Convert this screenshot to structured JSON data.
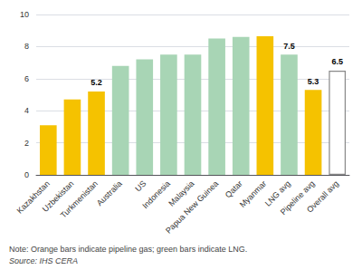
{
  "chart_data": {
    "type": "bar",
    "categories": [
      "Kazakhstan",
      "Uzbekistan",
      "Turkmenistan",
      "Australia",
      "US",
      "Indonesia",
      "Malaysia",
      "Papua New Guinea",
      "Qatar",
      "Myanmar",
      "LNG avg",
      "Pipeline avg",
      "Overall avg"
    ],
    "values": [
      3.1,
      4.7,
      5.2,
      6.8,
      7.2,
      7.5,
      7.5,
      8.5,
      8.6,
      8.65,
      7.5,
      5.3,
      6.5
    ],
    "value_labels": [
      null,
      null,
      "5.2",
      null,
      null,
      null,
      null,
      null,
      null,
      null,
      "7.5",
      "5.3",
      "6.5"
    ],
    "colors": [
      "#F5C200",
      "#F5C200",
      "#F5C200",
      "#A8D5B5",
      "#A8D5B5",
      "#A8D5B5",
      "#A8D5B5",
      "#A8D5B5",
      "#A8D5B5",
      "#F5C200",
      "#A8D5B5",
      "#F5C200",
      "white"
    ],
    "ylim": [
      0,
      10
    ],
    "yticks": [
      0,
      2,
      4,
      6,
      8,
      10
    ],
    "grid": true,
    "annotations": [
      "Note: Orange bars indicate pipeline gas; green bars indicate LNG.",
      "Source: IHS CERA"
    ]
  }
}
